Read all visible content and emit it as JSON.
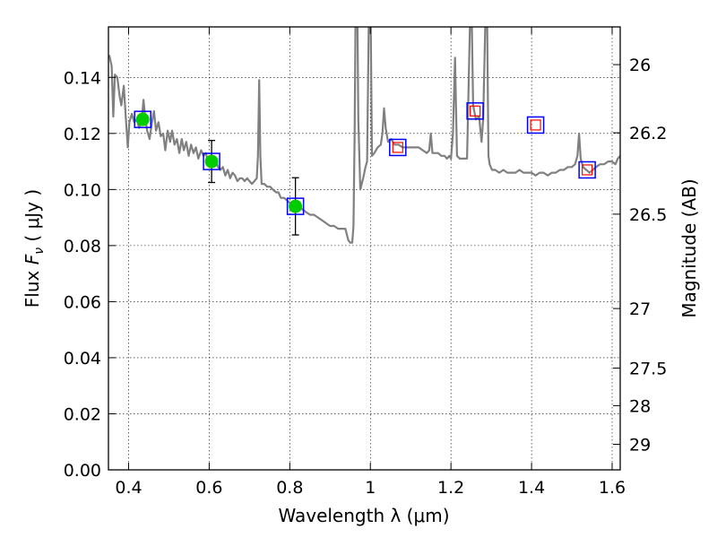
{
  "chart_data": {
    "type": "line",
    "xlabel": "Wavelength  λ (μm)",
    "ylabel": "Flux  F_ν  ( μJy )",
    "ylabel_parts": {
      "pre": "Flux  ",
      "sym": "F",
      "sub": "ν",
      "post": "  ( μJy )"
    },
    "y2label": "Magnitude (AB)",
    "xlim": [
      0.35,
      1.62
    ],
    "ylim": [
      0.0,
      0.158
    ],
    "grid": true,
    "x_ticks": [
      {
        "value": 0.4,
        "label": "0.4"
      },
      {
        "value": 0.6,
        "label": "0.6"
      },
      {
        "value": 0.8,
        "label": "0.8"
      },
      {
        "value": 1.0,
        "label": "1"
      },
      {
        "value": 1.2,
        "label": "1.2"
      },
      {
        "value": 1.4,
        "label": "1.4"
      },
      {
        "value": 1.6,
        "label": "1.6"
      }
    ],
    "y_ticks": [
      {
        "value": 0.0,
        "label": "0.00"
      },
      {
        "value": 0.02,
        "label": "0.02"
      },
      {
        "value": 0.04,
        "label": "0.04"
      },
      {
        "value": 0.06,
        "label": "0.06"
      },
      {
        "value": 0.08,
        "label": "0.08"
      },
      {
        "value": 0.1,
        "label": "0.10"
      },
      {
        "value": 0.12,
        "label": "0.12"
      },
      {
        "value": 0.14,
        "label": "0.14"
      }
    ],
    "y2_ticks": [
      {
        "value": 26,
        "label": "26"
      },
      {
        "value": 26.2,
        "label": "26.2"
      },
      {
        "value": 26.5,
        "label": "26.5"
      },
      {
        "value": 27,
        "label": "27"
      },
      {
        "value": 27.5,
        "label": "27.5"
      },
      {
        "value": 28,
        "label": "28"
      },
      {
        "value": 29,
        "label": "29"
      }
    ],
    "colors": {
      "spectrum": "#808080",
      "model_box": "#0000ff",
      "observed": "#00cc00",
      "upper_limit_box": "#ff0000",
      "errorbar": "#000000"
    },
    "spectrum": [
      [
        0.352,
        0.148
      ],
      [
        0.358,
        0.144
      ],
      [
        0.362,
        0.126
      ],
      [
        0.366,
        0.141
      ],
      [
        0.372,
        0.14
      ],
      [
        0.378,
        0.133
      ],
      [
        0.382,
        0.13
      ],
      [
        0.388,
        0.137
      ],
      [
        0.393,
        0.126
      ],
      [
        0.398,
        0.115
      ],
      [
        0.402,
        0.124
      ],
      [
        0.408,
        0.127
      ],
      [
        0.414,
        0.124
      ],
      [
        0.42,
        0.125
      ],
      [
        0.426,
        0.122
      ],
      [
        0.432,
        0.124
      ],
      [
        0.437,
        0.132
      ],
      [
        0.441,
        0.126
      ],
      [
        0.446,
        0.121
      ],
      [
        0.452,
        0.118
      ],
      [
        0.458,
        0.124
      ],
      [
        0.463,
        0.128
      ],
      [
        0.468,
        0.121
      ],
      [
        0.474,
        0.124
      ],
      [
        0.48,
        0.119
      ],
      [
        0.486,
        0.12
      ],
      [
        0.491,
        0.114
      ],
      [
        0.497,
        0.121
      ],
      [
        0.503,
        0.117
      ],
      [
        0.508,
        0.121
      ],
      [
        0.514,
        0.116
      ],
      [
        0.52,
        0.118
      ],
      [
        0.526,
        0.113
      ],
      [
        0.532,
        0.118
      ],
      [
        0.537,
        0.114
      ],
      [
        0.543,
        0.117
      ],
      [
        0.549,
        0.112
      ],
      [
        0.555,
        0.116
      ],
      [
        0.561,
        0.113
      ],
      [
        0.567,
        0.115
      ],
      [
        0.573,
        0.111
      ],
      [
        0.58,
        0.114
      ],
      [
        0.586,
        0.112
      ],
      [
        0.592,
        0.113
      ],
      [
        0.598,
        0.109
      ],
      [
        0.604,
        0.112
      ],
      [
        0.61,
        0.109
      ],
      [
        0.616,
        0.111
      ],
      [
        0.622,
        0.108
      ],
      [
        0.628,
        0.107
      ],
      [
        0.634,
        0.108
      ],
      [
        0.64,
        0.105
      ],
      [
        0.646,
        0.107
      ],
      [
        0.652,
        0.104
      ],
      [
        0.658,
        0.106
      ],
      [
        0.664,
        0.105
      ],
      [
        0.67,
        0.103
      ],
      [
        0.676,
        0.104
      ],
      [
        0.682,
        0.104
      ],
      [
        0.688,
        0.103
      ],
      [
        0.694,
        0.104
      ],
      [
        0.7,
        0.103
      ],
      [
        0.706,
        0.102
      ],
      [
        0.712,
        0.103
      ],
      [
        0.718,
        0.104
      ],
      [
        0.721,
        0.112
      ],
      [
        0.724,
        0.139
      ],
      [
        0.727,
        0.112
      ],
      [
        0.73,
        0.102
      ],
      [
        0.737,
        0.102
      ],
      [
        0.744,
        0.101
      ],
      [
        0.751,
        0.101
      ],
      [
        0.758,
        0.1
      ],
      [
        0.766,
        0.099
      ],
      [
        0.772,
        0.099
      ],
      [
        0.778,
        0.097
      ],
      [
        0.786,
        0.097
      ],
      [
        0.794,
        0.096
      ],
      [
        0.802,
        0.095
      ],
      [
        0.81,
        0.095
      ],
      [
        0.82,
        0.094
      ],
      [
        0.83,
        0.093
      ],
      [
        0.84,
        0.092
      ],
      [
        0.85,
        0.091
      ],
      [
        0.86,
        0.091
      ],
      [
        0.87,
        0.09
      ],
      [
        0.88,
        0.089
      ],
      [
        0.89,
        0.088
      ],
      [
        0.9,
        0.087
      ],
      [
        0.91,
        0.087
      ],
      [
        0.92,
        0.086
      ],
      [
        0.93,
        0.086
      ],
      [
        0.938,
        0.086
      ],
      [
        0.945,
        0.082
      ],
      [
        0.95,
        0.081
      ],
      [
        0.955,
        0.081
      ],
      [
        0.958,
        0.087
      ],
      [
        0.961,
        0.12
      ],
      [
        0.963,
        0.158
      ],
      [
        0.968,
        0.158
      ],
      [
        0.97,
        0.125
      ],
      [
        0.975,
        0.1
      ],
      [
        0.982,
        0.104
      ],
      [
        0.988,
        0.108
      ],
      [
        0.992,
        0.11
      ],
      [
        0.996,
        0.158
      ],
      [
        1.001,
        0.158
      ],
      [
        1.004,
        0.112
      ],
      [
        1.01,
        0.113
      ],
      [
        1.018,
        0.115
      ],
      [
        1.026,
        0.116
      ],
      [
        1.03,
        0.12
      ],
      [
        1.034,
        0.129
      ],
      [
        1.038,
        0.122
      ],
      [
        1.044,
        0.117
      ],
      [
        1.052,
        0.118
      ],
      [
        1.06,
        0.116
      ],
      [
        1.07,
        0.116
      ],
      [
        1.08,
        0.115
      ],
      [
        1.09,
        0.115
      ],
      [
        1.1,
        0.115
      ],
      [
        1.11,
        0.115
      ],
      [
        1.12,
        0.115
      ],
      [
        1.13,
        0.114
      ],
      [
        1.14,
        0.113
      ],
      [
        1.146,
        0.114
      ],
      [
        1.15,
        0.12
      ],
      [
        1.154,
        0.113
      ],
      [
        1.16,
        0.113
      ],
      [
        1.168,
        0.113
      ],
      [
        1.176,
        0.112
      ],
      [
        1.184,
        0.112
      ],
      [
        1.19,
        0.111
      ],
      [
        1.196,
        0.112
      ],
      [
        1.2,
        0.111
      ],
      [
        1.205,
        0.12
      ],
      [
        1.21,
        0.147
      ],
      [
        1.215,
        0.112
      ],
      [
        1.222,
        0.111
      ],
      [
        1.23,
        0.111
      ],
      [
        1.24,
        0.111
      ],
      [
        1.247,
        0.158
      ],
      [
        1.252,
        0.158
      ],
      [
        1.255,
        0.13
      ],
      [
        1.262,
        0.125
      ],
      [
        1.27,
        0.126
      ],
      [
        1.276,
        0.117
      ],
      [
        1.28,
        0.125
      ],
      [
        1.285,
        0.158
      ],
      [
        1.29,
        0.158
      ],
      [
        1.293,
        0.112
      ],
      [
        1.296,
        0.109
      ],
      [
        1.302,
        0.107
      ],
      [
        1.31,
        0.107
      ],
      [
        1.32,
        0.106
      ],
      [
        1.33,
        0.107
      ],
      [
        1.34,
        0.106
      ],
      [
        1.35,
        0.106
      ],
      [
        1.36,
        0.106
      ],
      [
        1.37,
        0.107
      ],
      [
        1.38,
        0.106
      ],
      [
        1.39,
        0.106
      ],
      [
        1.4,
        0.106
      ],
      [
        1.41,
        0.105
      ],
      [
        1.42,
        0.106
      ],
      [
        1.43,
        0.106
      ],
      [
        1.44,
        0.105
      ],
      [
        1.45,
        0.106
      ],
      [
        1.46,
        0.106
      ],
      [
        1.47,
        0.107
      ],
      [
        1.48,
        0.107
      ],
      [
        1.49,
        0.108
      ],
      [
        1.5,
        0.108
      ],
      [
        1.508,
        0.109
      ],
      [
        1.514,
        0.112
      ],
      [
        1.518,
        0.12
      ],
      [
        1.522,
        0.111
      ],
      [
        1.528,
        0.108
      ],
      [
        1.536,
        0.107
      ],
      [
        1.544,
        0.106
      ],
      [
        1.552,
        0.107
      ],
      [
        1.56,
        0.108
      ],
      [
        1.57,
        0.109
      ],
      [
        1.58,
        0.109
      ],
      [
        1.59,
        0.11
      ],
      [
        1.6,
        0.11
      ],
      [
        1.608,
        0.109
      ],
      [
        1.614,
        0.111
      ],
      [
        1.62,
        0.112
      ]
    ],
    "model_boxes": [
      {
        "x": 0.435,
        "y": 0.125
      },
      {
        "x": 0.606,
        "y": 0.11
      },
      {
        "x": 0.814,
        "y": 0.094
      },
      {
        "x": 1.068,
        "y": 0.115
      },
      {
        "x": 1.26,
        "y": 0.128
      },
      {
        "x": 1.41,
        "y": 0.123
      },
      {
        "x": 1.538,
        "y": 0.107
      }
    ],
    "observed": [
      {
        "x": 0.435,
        "y": 0.125,
        "err": 0
      },
      {
        "x": 0.606,
        "y": 0.11,
        "err": 0.0075
      },
      {
        "x": 0.814,
        "y": 0.094,
        "err": 0.0102
      }
    ],
    "upper_limits": [
      {
        "x": 1.068,
        "y": 0.115
      },
      {
        "x": 1.26,
        "y": 0.128
      },
      {
        "x": 1.41,
        "y": 0.123
      },
      {
        "x": 1.538,
        "y": 0.107
      }
    ]
  }
}
